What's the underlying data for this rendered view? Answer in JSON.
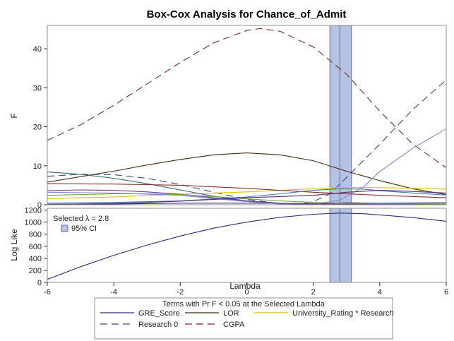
{
  "chart_data": {
    "type": "line",
    "title": "Box-Cox Analysis for Chance_of_Admit",
    "xlabel": "Lambda",
    "xlim": [
      -6,
      6
    ],
    "xticks": [
      -6,
      -4,
      -2,
      0,
      2,
      4,
      6
    ],
    "selected_lambda": 2.8,
    "ci": [
      2.5,
      3.15
    ],
    "ci_label": "95% CI",
    "selected_label": "Selected λ = 2.8",
    "top_panel": {
      "ylabel": "F",
      "ylim": [
        0,
        46
      ],
      "yticks": [
        0,
        10,
        20,
        30,
        40
      ],
      "series": [
        {
          "name": "CGPA",
          "color": "#7a2e1e",
          "dash": "10,6",
          "x": [
            -6,
            -5,
            -4,
            -3,
            -2,
            -1,
            0,
            0.4,
            1,
            2,
            3,
            4,
            5,
            6
          ],
          "y": [
            16.5,
            20.5,
            25.5,
            31,
            36.5,
            41.5,
            44.7,
            45.2,
            44.5,
            40.5,
            33.5,
            24,
            15.5,
            9.5
          ]
        },
        {
          "name": "Research 0",
          "color": "#3a4a8c",
          "dash": "10,6",
          "x": [
            -6,
            -5,
            -4,
            -3,
            -2,
            -1,
            0,
            1,
            1.5,
            2,
            2.5,
            3,
            4,
            5,
            6
          ],
          "y": [
            7.3,
            7.8,
            7.7,
            6.8,
            5.2,
            3.2,
            1.4,
            0.3,
            0.1,
            0.8,
            2.8,
            7,
            15.5,
            24.5,
            32
          ]
        },
        {
          "name": "LOR",
          "color": "#4a2a10",
          "dash": "",
          "x": [
            -6,
            -5,
            -4,
            -3,
            -2,
            -1,
            0,
            1,
            2,
            3,
            4,
            5,
            6
          ],
          "y": [
            5.8,
            7.2,
            8.6,
            10.2,
            11.6,
            12.8,
            13.3,
            12.8,
            11.3,
            8.6,
            6.2,
            4.1,
            2.6
          ]
        },
        {
          "name": "GRE_Score",
          "color": "#2a2f7a",
          "dash": "",
          "x": [
            -6,
            -4,
            -2,
            0,
            2,
            3,
            4,
            6
          ],
          "y": [
            0.1,
            0.2,
            0.4,
            0.4,
            0.3,
            0.5,
            0.4,
            0.5
          ]
        },
        {
          "name": "University_Rating * Research",
          "color": "#d6c200",
          "dash": "",
          "x": [
            -6,
            -4,
            -2,
            0,
            1,
            2,
            2.8,
            4,
            5,
            6
          ],
          "y": [
            1.6,
            2.0,
            2.7,
            3.3,
            3.7,
            4.1,
            4.4,
            4.4,
            4.2,
            4.0
          ]
        },
        {
          "color": "#8a86d8",
          "dash": "",
          "x": [
            -6,
            -4,
            -2,
            -1,
            0,
            1,
            2,
            2.8,
            3.5,
            4,
            5,
            6
          ],
          "y": [
            3.2,
            3.0,
            2.4,
            1.6,
            0.8,
            0.2,
            0.1,
            1.2,
            4.5,
            8.5,
            14.5,
            19.5
          ]
        },
        {
          "color": "#2e6e6e",
          "dash": "",
          "x": [
            -6,
            -5,
            -4,
            -3,
            -2,
            -1,
            0,
            1,
            2,
            3,
            4,
            6
          ],
          "y": [
            8.4,
            7.8,
            6.8,
            5.4,
            3.8,
            2.2,
            1.0,
            0.3,
            0.1,
            0.1,
            0.1,
            0.1
          ]
        },
        {
          "color": "#7a3a8a",
          "dash": "",
          "x": [
            -6,
            -5,
            -4,
            -3,
            -2,
            -1,
            0,
            1,
            2,
            3,
            4,
            6
          ],
          "y": [
            3.6,
            3.8,
            3.7,
            3.3,
            2.7,
            1.8,
            1.0,
            0.4,
            0.2,
            0.2,
            0.2,
            0.2
          ]
        },
        {
          "color": "#6aaa3a",
          "dash": "",
          "x": [
            -6,
            -5,
            -4,
            -3,
            -2,
            -1,
            0,
            1,
            2,
            3,
            4,
            6
          ],
          "y": [
            2.4,
            2.6,
            2.8,
            2.8,
            2.6,
            2.1,
            1.5,
            1.0,
            0.6,
            0.4,
            0.3,
            0.2
          ]
        },
        {
          "color": "#8a3030",
          "dash": "",
          "x": [
            -6,
            -4,
            -2,
            0,
            2,
            4,
            6
          ],
          "y": [
            5.4,
            5.3,
            5.0,
            4.2,
            3.2,
            2.4,
            1.8
          ]
        },
        {
          "color": "#3a7ab8",
          "dash": "",
          "x": [
            -6,
            -4,
            -2,
            0,
            1,
            2,
            2.8,
            3.5,
            4,
            5,
            6
          ],
          "y": [
            0.4,
            0.6,
            1.0,
            2.0,
            2.8,
            3.7,
            4.1,
            4.0,
            3.6,
            3.0,
            2.5
          ]
        },
        {
          "color": "#5a2a6a",
          "dash": "",
          "x": [
            -6,
            -4,
            -2,
            0,
            2,
            3,
            4,
            5,
            6
          ],
          "y": [
            0.1,
            0.3,
            0.9,
            1.8,
            2.4,
            3.2,
            3.7,
            3.4,
            3.0
          ]
        }
      ]
    },
    "bottom_panel": {
      "ylabel": "Log Like",
      "ylim": [
        0,
        1230
      ],
      "yticks": [
        0,
        200,
        400,
        600,
        800,
        1000,
        1200
      ],
      "series": [
        {
          "color": "#2a2f7a",
          "x": [
            -6,
            -5,
            -4,
            -3,
            -2,
            -1,
            0,
            1,
            2,
            2.8,
            3.5,
            4,
            5,
            6
          ],
          "y": [
            50,
            260,
            450,
            620,
            770,
            900,
            1000,
            1080,
            1130,
            1150,
            1140,
            1120,
            1075,
            1015
          ]
        }
      ]
    },
    "legend": {
      "title": "Terms with Pr F < 0.05 at the Selected Lambda",
      "placement": "bottom",
      "items": [
        {
          "label": "GRE_Score",
          "color": "#2a2f7a",
          "dash": ""
        },
        {
          "label": "LOR",
          "color": "#4a2a10",
          "dash": ""
        },
        {
          "label": "University_Rating * Research",
          "color": "#d6c200",
          "dash": ""
        },
        {
          "label": "Research 0",
          "color": "#3a4a8c",
          "dash": "10,6"
        },
        {
          "label": "CGPA",
          "color": "#7a2e1e",
          "dash": "10,6"
        }
      ]
    },
    "ci_fill": "#b4c3e2",
    "ci_stroke": "#5a6ea8",
    "selected_line_color": "#5a6ea8"
  }
}
